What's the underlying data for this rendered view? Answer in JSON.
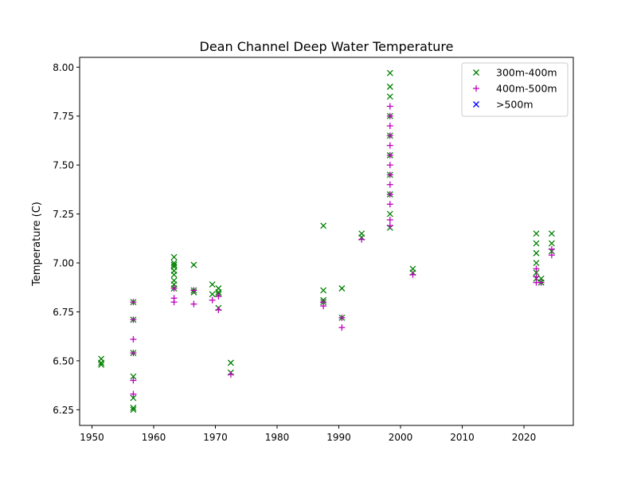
{
  "chart_data": {
    "type": "scatter",
    "title": "Dean Channel Deep Water Temperature",
    "xlabel": "",
    "ylabel": "Temperature (C)",
    "xlim": [
      1948,
      2028
    ],
    "ylim": [
      6.17,
      8.05
    ],
    "x_ticks": [
      1950,
      1960,
      1970,
      1980,
      1990,
      2000,
      2010,
      2020
    ],
    "y_ticks": [
      6.25,
      6.5,
      6.75,
      7.0,
      7.25,
      7.5,
      7.75,
      8.0
    ],
    "y_tick_labels": [
      "6.25",
      "6.50",
      "6.75",
      "7.00",
      "7.25",
      "7.50",
      "7.75",
      "8.00"
    ],
    "grid": false,
    "legend_position": "top-right",
    "series": [
      {
        "name": "300m-400m",
        "marker": "x",
        "color": "#008000",
        "points": [
          [
            1951.5,
            6.51
          ],
          [
            1951.5,
            6.49
          ],
          [
            1951.5,
            6.48
          ],
          [
            1956.7,
            6.8
          ],
          [
            1956.7,
            6.71
          ],
          [
            1956.7,
            6.54
          ],
          [
            1956.7,
            6.42
          ],
          [
            1956.7,
            6.31
          ],
          [
            1956.7,
            6.26
          ],
          [
            1956.7,
            6.25
          ],
          [
            1963.3,
            7.03
          ],
          [
            1963.3,
            7.0
          ],
          [
            1963.3,
            6.99
          ],
          [
            1963.3,
            6.98
          ],
          [
            1963.3,
            6.96
          ],
          [
            1963.3,
            6.94
          ],
          [
            1963.3,
            6.91
          ],
          [
            1963.3,
            6.89
          ],
          [
            1963.3,
            6.87
          ],
          [
            1966.5,
            6.99
          ],
          [
            1966.5,
            6.86
          ],
          [
            1966.5,
            6.85
          ],
          [
            1969.5,
            6.89
          ],
          [
            1969.5,
            6.84
          ],
          [
            1970.5,
            6.87
          ],
          [
            1970.5,
            6.85
          ],
          [
            1970.5,
            6.84
          ],
          [
            1970.5,
            6.77
          ],
          [
            1972.5,
            6.49
          ],
          [
            1972.5,
            6.44
          ],
          [
            1987.5,
            7.19
          ],
          [
            1987.5,
            6.86
          ],
          [
            1987.5,
            6.81
          ],
          [
            1987.5,
            6.8
          ],
          [
            1990.5,
            6.87
          ],
          [
            1990.5,
            6.72
          ],
          [
            1993.7,
            7.15
          ],
          [
            1993.7,
            7.13
          ],
          [
            1998.3,
            7.97
          ],
          [
            1998.3,
            7.9
          ],
          [
            1998.3,
            7.85
          ],
          [
            1998.3,
            7.75
          ],
          [
            1998.3,
            7.65
          ],
          [
            1998.3,
            7.55
          ],
          [
            1998.3,
            7.45
          ],
          [
            1998.3,
            7.35
          ],
          [
            1998.3,
            7.25
          ],
          [
            1998.3,
            7.18
          ],
          [
            2002.0,
            6.97
          ],
          [
            2002.0,
            6.95
          ],
          [
            2022.0,
            7.15
          ],
          [
            2022.0,
            7.1
          ],
          [
            2022.0,
            7.05
          ],
          [
            2022.0,
            7.0
          ],
          [
            2022.0,
            6.95
          ],
          [
            2022.0,
            6.92
          ],
          [
            2022.8,
            6.92
          ],
          [
            2022.8,
            6.9
          ],
          [
            2024.5,
            7.15
          ],
          [
            2024.5,
            7.1
          ],
          [
            2024.5,
            7.06
          ]
        ]
      },
      {
        "name": "400m-500m",
        "marker": "+",
        "color": "#bf00bf",
        "points": [
          [
            1956.7,
            6.8
          ],
          [
            1956.7,
            6.71
          ],
          [
            1956.7,
            6.61
          ],
          [
            1956.7,
            6.54
          ],
          [
            1956.7,
            6.4
          ],
          [
            1956.7,
            6.33
          ],
          [
            1963.3,
            6.87
          ],
          [
            1963.3,
            6.82
          ],
          [
            1963.3,
            6.8
          ],
          [
            1966.5,
            6.86
          ],
          [
            1966.5,
            6.79
          ],
          [
            1969.5,
            6.81
          ],
          [
            1970.5,
            6.83
          ],
          [
            1970.5,
            6.76
          ],
          [
            1972.5,
            6.43
          ],
          [
            1987.5,
            6.8
          ],
          [
            1987.5,
            6.78
          ],
          [
            1990.5,
            6.72
          ],
          [
            1990.5,
            6.67
          ],
          [
            1993.7,
            7.12
          ],
          [
            1998.3,
            7.8
          ],
          [
            1998.3,
            7.75
          ],
          [
            1998.3,
            7.7
          ],
          [
            1998.3,
            7.65
          ],
          [
            1998.3,
            7.6
          ],
          [
            1998.3,
            7.55
          ],
          [
            1998.3,
            7.5
          ],
          [
            1998.3,
            7.45
          ],
          [
            1998.3,
            7.4
          ],
          [
            1998.3,
            7.35
          ],
          [
            1998.3,
            7.3
          ],
          [
            1998.3,
            7.22
          ],
          [
            1998.3,
            7.19
          ],
          [
            2002.0,
            6.94
          ],
          [
            2022.0,
            6.97
          ],
          [
            2022.0,
            6.93
          ],
          [
            2022.0,
            6.9
          ],
          [
            2022.8,
            6.9
          ],
          [
            2024.5,
            7.07
          ],
          [
            2024.5,
            7.04
          ]
        ]
      },
      {
        "name": ">500m",
        "marker": "x",
        "color": "#0000ff",
        "points": []
      }
    ]
  }
}
